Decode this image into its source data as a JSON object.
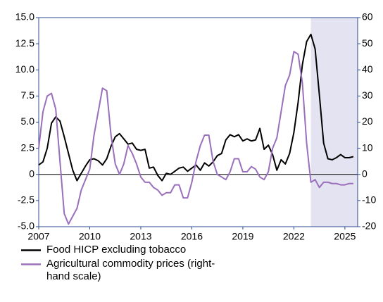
{
  "chart_data": {
    "type": "line",
    "x": [
      2007,
      2007.25,
      2007.5,
      2007.75,
      2008,
      2008.25,
      2008.5,
      2008.75,
      2009,
      2009.25,
      2009.5,
      2009.75,
      2010,
      2010.25,
      2010.5,
      2010.75,
      2011,
      2011.25,
      2011.5,
      2011.75,
      2012,
      2012.25,
      2012.5,
      2012.75,
      2013,
      2013.25,
      2013.5,
      2013.75,
      2014,
      2014.25,
      2014.5,
      2014.75,
      2015,
      2015.25,
      2015.5,
      2015.75,
      2016,
      2016.25,
      2016.5,
      2016.75,
      2017,
      2017.25,
      2017.5,
      2017.75,
      2018,
      2018.25,
      2018.5,
      2018.75,
      2019,
      2019.25,
      2019.5,
      2019.75,
      2020,
      2020.25,
      2020.5,
      2020.75,
      2021,
      2021.25,
      2021.5,
      2021.75,
      2022,
      2022.25,
      2022.5,
      2022.75,
      2023,
      2023.25,
      2023.5,
      2023.75,
      2024,
      2024.25,
      2024.5,
      2024.75,
      2025,
      2025.25,
      2025.5
    ],
    "series": [
      {
        "name": "Food HICP excluding tobacco",
        "color": "#000000",
        "values": [
          0.9,
          1.2,
          2.5,
          4.9,
          5.5,
          5.1,
          3.6,
          2.0,
          0.4,
          -0.6,
          0.1,
          0.8,
          1.4,
          1.5,
          1.3,
          0.9,
          1.5,
          2.7,
          3.6,
          3.9,
          3.4,
          2.9,
          3.0,
          2.4,
          2.3,
          2.4,
          0.6,
          0.7,
          -0.1,
          -0.6,
          0.1,
          0.0,
          0.3,
          0.6,
          0.7,
          0.3,
          0.6,
          0.9,
          0.4,
          1.1,
          0.8,
          1.2,
          1.8,
          2.0,
          3.3,
          3.8,
          3.6,
          3.8,
          3.2,
          3.4,
          3.2,
          3.3,
          4.4,
          2.4,
          2.8,
          1.9,
          0.4,
          1.4,
          1.0,
          2.0,
          4.0,
          6.9,
          10.5,
          12.7,
          13.4,
          12.0,
          7.6,
          3.0,
          1.5,
          1.4,
          1.6,
          1.9,
          1.6,
          1.6,
          1.7
        ]
      },
      {
        "name": "Agricultural commodity prices (right-hand scale)",
        "color": "#9a6fbb",
        "axis": "y2",
        "values": [
          10,
          24,
          30,
          31,
          25,
          5,
          -15,
          -19,
          -16,
          -13,
          -6,
          -2,
          2,
          15,
          24,
          33,
          32,
          15,
          4,
          0,
          4,
          11,
          8,
          4,
          -1,
          -3,
          -3,
          -5,
          -6,
          -8,
          -7,
          -7,
          -4,
          -4,
          -9,
          -9,
          -3,
          5,
          11,
          15,
          15,
          5,
          0,
          -1,
          -2,
          1,
          6,
          6,
          1,
          1,
          3,
          2,
          -1,
          -2,
          1,
          10,
          14,
          24,
          34,
          38,
          47,
          46,
          35,
          12,
          -3,
          -2,
          -5,
          -3,
          -3,
          -3.5,
          -3.5,
          -4,
          -4,
          -3.5,
          -3.5
        ]
      }
    ],
    "xlim": [
      2007,
      2025.75
    ],
    "xticks": [
      2007,
      2010,
      2013,
      2016,
      2019,
      2022,
      2025
    ],
    "ylim": [
      -5,
      15
    ],
    "yticks": [
      {
        "value": -5,
        "label": "-5.0"
      },
      -2.5,
      0,
      2.5,
      {
        "value": 5,
        "label": "5.0"
      },
      7.5,
      {
        "value": 10,
        "label": "10.0"
      },
      12.5,
      {
        "value": 15,
        "label": "15.0"
      }
    ],
    "y2lim": [
      -20,
      60
    ],
    "y2ticks": [
      -20,
      -10,
      0,
      10,
      20,
      30,
      40,
      50,
      60
    ],
    "shaded_xrange": [
      2023,
      2025.75
    ],
    "shade_color": "#e3e3f1",
    "axis_color": "#2b4a8f"
  }
}
